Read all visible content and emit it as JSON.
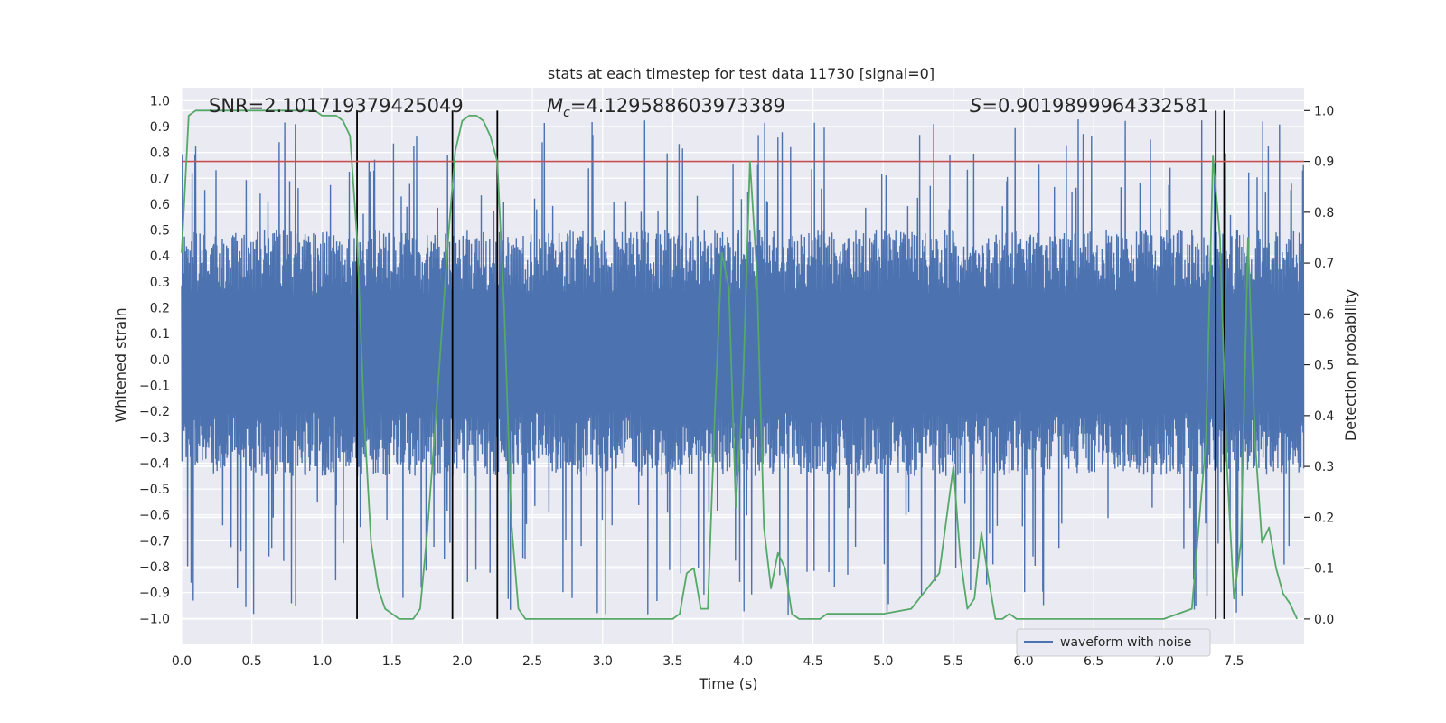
{
  "chart_data": {
    "type": "line",
    "title": "stats at each timestep for test data 11730 [signal=0]",
    "xlabel": "Time (s)",
    "ylabel_left": "Whitened strain",
    "ylabel_right": "Detection probability",
    "xlim": [
      0.0,
      8.0
    ],
    "ylim_left": [
      -1.1,
      1.05
    ],
    "ylim_right": [
      -0.05,
      1.045
    ],
    "x_ticks": [
      0.0,
      0.5,
      1.0,
      1.5,
      2.0,
      2.5,
      3.0,
      3.5,
      4.0,
      4.5,
      5.0,
      5.5,
      6.0,
      6.5,
      7.0,
      7.5
    ],
    "x_tick_labels": [
      "0.0",
      "0.5",
      "1.0",
      "1.5",
      "2.0",
      "2.5",
      "3.0",
      "3.5",
      "4.0",
      "4.5",
      "5.0",
      "5.5",
      "6.0",
      "6.5",
      "7.0",
      "7.5"
    ],
    "y_left_ticks": [
      1.0,
      0.9,
      0.8,
      0.7,
      0.6,
      0.5,
      0.4,
      0.3,
      0.2,
      0.1,
      0.0,
      -0.1,
      -0.2,
      -0.3,
      -0.4,
      -0.5,
      -0.6,
      -0.7,
      -0.8,
      -0.9,
      -1.0
    ],
    "y_left_tick_labels": [
      "1.0",
      "0.9",
      "0.8",
      "0.7",
      "0.6",
      "0.5",
      "0.4",
      "0.3",
      "0.2",
      "0.1",
      "0.0",
      "−0.1",
      "−0.2",
      "−0.3",
      "−0.4",
      "−0.5",
      "−0.6",
      "−0.7",
      "−0.8",
      "−0.9",
      "−1.0"
    ],
    "y_right_ticks": [
      1.0,
      0.9,
      0.8,
      0.7,
      0.6,
      0.5,
      0.4,
      0.3,
      0.2,
      0.1,
      0.0
    ],
    "y_right_tick_labels": [
      "1.0",
      "0.9",
      "0.8",
      "0.7",
      "0.6",
      "0.5",
      "0.4",
      "0.3",
      "0.2",
      "0.1",
      "0.0"
    ],
    "annotations": {
      "snr": "SNR=2.101719379425049",
      "mc_symbol": "M",
      "mc_sub": "c",
      "mc_value": "=4.129588603973389",
      "s_symbol": "S",
      "s_value": "=0.9019899964332581"
    },
    "legend": {
      "label": "waveform with noise",
      "position": "lower-right"
    },
    "threshold": {
      "axis": "right",
      "value": 0.9
    },
    "vertical_markers_s": [
      1.25,
      1.93,
      2.25,
      7.37,
      7.43
    ],
    "waveform": {
      "name": "waveform with noise",
      "sample_count": 1600,
      "x_range": [
        0.0,
        8.0
      ],
      "typical_envelope": [
        -0.45,
        0.5
      ],
      "peak_max": 0.93,
      "peak_min": -1.0
    },
    "probability": {
      "name": "Detection probability",
      "x": [
        0.0,
        0.05,
        0.1,
        0.2,
        0.4,
        0.6,
        0.8,
        0.95,
        1.0,
        1.05,
        1.1,
        1.15,
        1.2,
        1.25,
        1.3,
        1.35,
        1.4,
        1.45,
        1.5,
        1.55,
        1.6,
        1.65,
        1.7,
        1.75,
        1.8,
        1.85,
        1.9,
        1.95,
        2.0,
        2.05,
        2.1,
        2.15,
        2.2,
        2.25,
        2.3,
        2.35,
        2.4,
        2.45,
        2.5,
        2.6,
        2.8,
        3.0,
        3.2,
        3.4,
        3.5,
        3.55,
        3.6,
        3.65,
        3.7,
        3.75,
        3.8,
        3.85,
        3.9,
        3.95,
        4.0,
        4.05,
        4.1,
        4.15,
        4.2,
        4.25,
        4.3,
        4.35,
        4.4,
        4.45,
        4.5,
        4.55,
        4.6,
        4.8,
        5.0,
        5.2,
        5.4,
        5.5,
        5.55,
        5.6,
        5.65,
        5.7,
        5.75,
        5.8,
        5.85,
        5.9,
        5.95,
        6.0,
        6.05,
        6.1,
        6.2,
        6.4,
        6.6,
        6.8,
        7.0,
        7.2,
        7.3,
        7.35,
        7.4,
        7.45,
        7.5,
        7.55,
        7.6,
        7.65,
        7.7,
        7.75,
        7.8,
        7.85,
        7.9,
        7.95
      ],
      "y": [
        0.72,
        0.99,
        1.0,
        1.0,
        1.0,
        1.0,
        1.0,
        1.0,
        0.99,
        0.99,
        0.99,
        0.98,
        0.95,
        0.75,
        0.4,
        0.15,
        0.06,
        0.02,
        0.01,
        0.0,
        0.0,
        0.0,
        0.02,
        0.17,
        0.35,
        0.55,
        0.75,
        0.92,
        0.98,
        0.99,
        0.99,
        0.98,
        0.95,
        0.9,
        0.6,
        0.19,
        0.02,
        0.0,
        0.0,
        0.0,
        0.0,
        0.0,
        0.0,
        0.0,
        0.0,
        0.01,
        0.09,
        0.1,
        0.02,
        0.02,
        0.4,
        0.72,
        0.65,
        0.22,
        0.45,
        0.9,
        0.68,
        0.18,
        0.06,
        0.13,
        0.1,
        0.01,
        0.0,
        0.0,
        0.0,
        0.0,
        0.01,
        0.01,
        0.01,
        0.02,
        0.09,
        0.3,
        0.12,
        0.02,
        0.04,
        0.17,
        0.08,
        0.0,
        0.0,
        0.01,
        0.0,
        0.0,
        0.0,
        0.0,
        0.0,
        0.0,
        0.0,
        0.0,
        0.0,
        0.02,
        0.35,
        0.91,
        0.75,
        0.3,
        0.04,
        0.15,
        0.75,
        0.35,
        0.15,
        0.18,
        0.1,
        0.05,
        0.03,
        0.0
      ]
    },
    "colors": {
      "background": "#ffffff",
      "axes_face": "#eaeaf2",
      "grid": "#ffffff",
      "waveform": "#4c72b0",
      "probability": "#55a868",
      "threshold": "#c44e52",
      "markers": "#000000",
      "text": "#262626"
    }
  }
}
